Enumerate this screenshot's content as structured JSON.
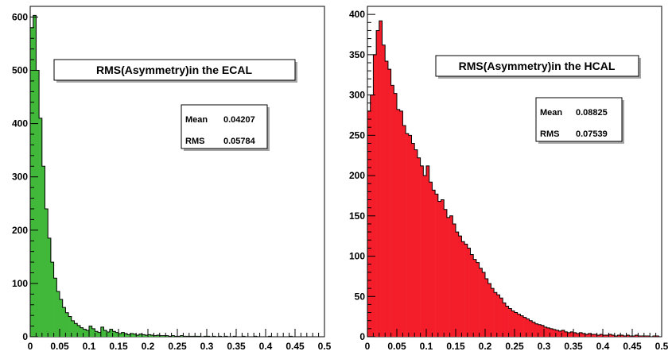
{
  "chart_data": [
    {
      "type": "bar",
      "title": "RMS(Asymmetry)in the ECAL",
      "stats": {
        "mean_label": "Mean",
        "mean_value": "0.04207",
        "rms_label": "RMS",
        "rms_value": "0.05784"
      },
      "fill": "#41b83a",
      "xlim": [
        0,
        0.5
      ],
      "ylim": [
        0,
        620
      ],
      "x_ticks": [
        "0",
        "0.05",
        "0.1",
        "0.15",
        "0.2",
        "0.25",
        "0.3",
        "0.35",
        "0.4",
        "0.45",
        "0.5"
      ],
      "y_ticks": [
        "0",
        "100",
        "200",
        "300",
        "400",
        "500",
        "600"
      ],
      "bin_width": 0.005,
      "values": [
        580,
        603,
        500,
        410,
        320,
        240,
        185,
        140,
        110,
        85,
        70,
        55,
        45,
        38,
        30,
        25,
        21,
        17,
        14,
        12,
        20,
        15,
        10,
        8,
        18,
        12,
        9,
        14,
        10,
        8,
        6,
        8,
        6,
        4,
        6,
        5,
        3,
        5,
        4,
        3,
        4,
        3,
        2,
        3,
        2,
        2,
        2,
        1,
        2,
        1,
        1,
        2,
        1,
        1,
        1,
        1,
        1,
        1,
        0,
        1,
        1,
        0,
        1,
        0,
        1,
        0,
        1,
        0,
        0,
        1,
        0,
        0,
        1,
        0,
        0,
        0,
        1,
        0,
        0,
        0,
        0,
        1,
        0,
        0,
        0,
        0,
        0,
        0,
        1,
        0,
        0,
        0,
        0,
        0,
        0,
        0,
        0,
        0,
        0,
        0
      ]
    },
    {
      "type": "bar",
      "title": "RMS(Asymmetry)in the HCAL",
      "stats": {
        "mean_label": "Mean",
        "mean_value": "0.08825",
        "rms_label": "RMS",
        "rms_value": "0.07539"
      },
      "fill": "#f41d2a",
      "xlim": [
        0,
        0.5
      ],
      "ylim": [
        0,
        410
      ],
      "x_ticks": [
        "0",
        "0.05",
        "0.1",
        "0.15",
        "0.2",
        "0.25",
        "0.3",
        "0.35",
        "0.4",
        "0.45",
        "0.5"
      ],
      "y_ticks": [
        "0",
        "50",
        "100",
        "150",
        "200",
        "250",
        "300",
        "350",
        "400"
      ],
      "bin_width": 0.005,
      "values": [
        280,
        300,
        350,
        380,
        392,
        362,
        342,
        332,
        312,
        302,
        282,
        280,
        262,
        252,
        250,
        240,
        232,
        222,
        212,
        200,
        212,
        192,
        182,
        177,
        168,
        170,
        158,
        148,
        150,
        140,
        130,
        125,
        118,
        115,
        110,
        102,
        96,
        92,
        85,
        80,
        72,
        66,
        60,
        55,
        52,
        48,
        42,
        38,
        35,
        32,
        30,
        28,
        26,
        24,
        22,
        20,
        18,
        16,
        15,
        14,
        12,
        11,
        10,
        9,
        8,
        7,
        8,
        6,
        5,
        6,
        5,
        4,
        5,
        4,
        3,
        4,
        3,
        3,
        2,
        3,
        2,
        2,
        3,
        2,
        1,
        2,
        2,
        1,
        2,
        1,
        1,
        2,
        1,
        1,
        1,
        1,
        0,
        1,
        1,
        0
      ]
    }
  ]
}
